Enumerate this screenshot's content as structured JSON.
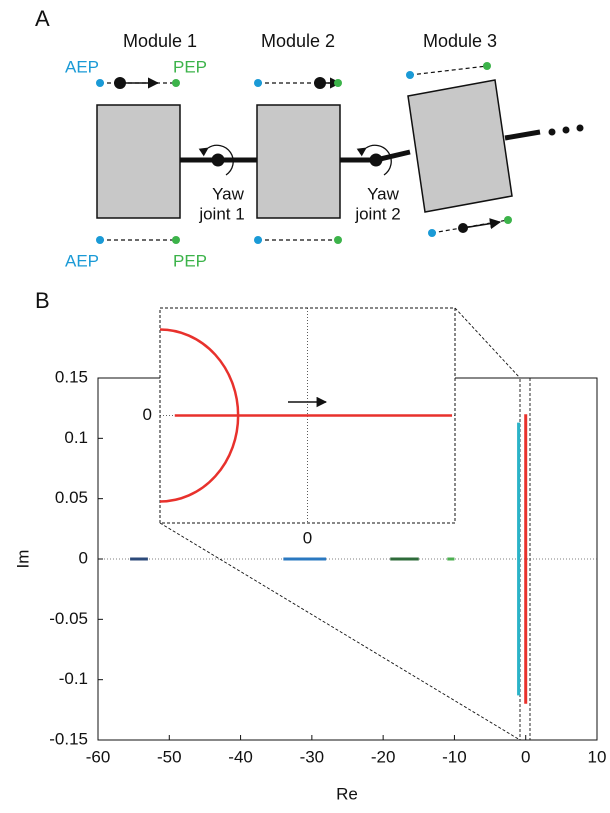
{
  "panel_a": {
    "label": "A",
    "modules": [
      "Module 1",
      "Module 2",
      "Module 3"
    ],
    "aep": "AEP",
    "pep": "PEP",
    "joints": [
      {
        "lines": [
          "Yaw",
          "joint 1"
        ]
      },
      {
        "lines": [
          "Yaw",
          "joint 2"
        ]
      }
    ]
  },
  "chart_data": {
    "type": "line",
    "label": "B",
    "xlabel": "Re",
    "ylabel": "Im",
    "xlim": [
      -60,
      10
    ],
    "ylim": [
      -0.15,
      0.15
    ],
    "xticks": [
      -60,
      -50,
      -40,
      -30,
      -20,
      -10,
      0,
      10
    ],
    "yticks": [
      -0.15,
      -0.1,
      -0.05,
      0,
      0.05,
      0.1,
      0.15
    ],
    "series": [
      {
        "color": "#2c4a7a",
        "x": [
          -55.5,
          -53
        ],
        "y": [
          0,
          0
        ]
      },
      {
        "color": "#2a78c0",
        "x": [
          -34,
          -28
        ],
        "y": [
          0,
          0
        ]
      },
      {
        "color": "#2e6b3a",
        "x": [
          -19,
          -15
        ],
        "y": [
          0,
          0
        ]
      },
      {
        "color": "#4caf50",
        "x": [
          -11,
          -10
        ],
        "y": [
          0,
          0
        ]
      },
      {
        "color": "#2bb3c8",
        "x": [
          -1,
          -1
        ],
        "y": [
          -0.113,
          0.113
        ]
      },
      {
        "color": "#e8312c",
        "x": [
          0,
          0
        ],
        "y": [
          -0.12,
          0.12
        ]
      }
    ],
    "inset": {
      "xlim": [
        -1,
        1
      ],
      "ylim": [
        -1,
        1
      ],
      "xticks": [
        0
      ],
      "yticks": [
        0
      ],
      "color": "#e8312c",
      "ellipse": {
        "cx": -1,
        "cy": 0,
        "rx": 0.53,
        "ry": 0.8
      },
      "line": {
        "x": [
          -0.9,
          0.98
        ],
        "y": [
          0,
          0
        ]
      }
    }
  }
}
